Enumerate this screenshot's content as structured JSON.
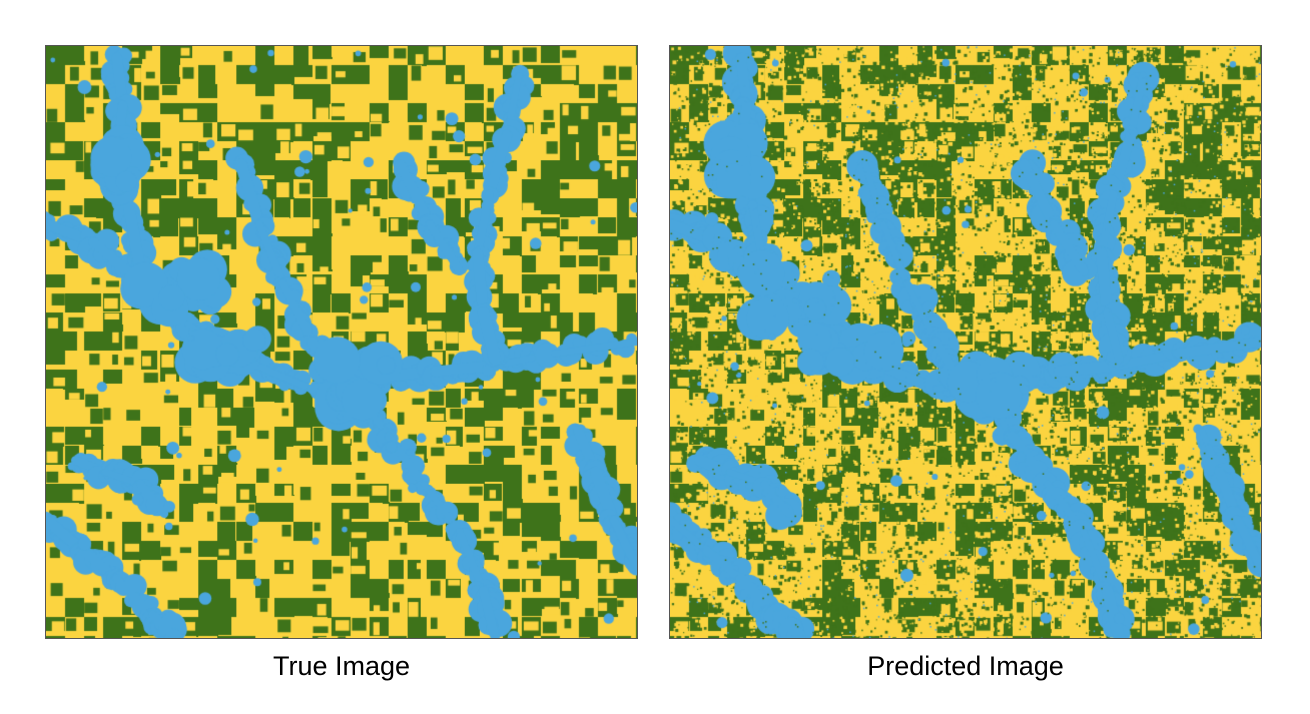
{
  "figure": {
    "panels": [
      {
        "caption": "True Image"
      },
      {
        "caption": "Predicted Image"
      }
    ]
  },
  "palette": {
    "crop_a": "#fbd440",
    "crop_b": "#3e731a",
    "water": "#4aa6dd"
  }
}
